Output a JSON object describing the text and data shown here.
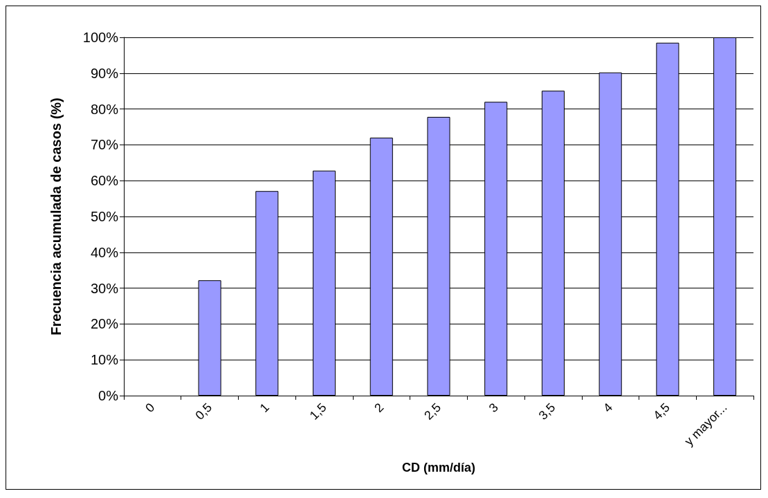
{
  "chart_data": {
    "type": "bar",
    "xlabel": "CD (mm/día)",
    "ylabel": "Frecuencia acumulada de casos (%)",
    "categories": [
      "0",
      "0,5",
      "1",
      "1,5",
      "2",
      "2,5",
      "3",
      "3,5",
      "4",
      "4,5",
      "y mayor..."
    ],
    "values": [
      0,
      32.2,
      57.1,
      62.8,
      72.0,
      77.8,
      82.0,
      85.1,
      90.2,
      98.5,
      100
    ],
    "color": "#9999ff",
    "ylim": [
      0,
      100
    ],
    "yticks": [
      {
        "value": 0,
        "label": "0%"
      },
      {
        "value": 10,
        "label": "10%"
      },
      {
        "value": 20,
        "label": "20%"
      },
      {
        "value": 30,
        "label": "30%"
      },
      {
        "value": 40,
        "label": "40%"
      },
      {
        "value": 50,
        "label": "50%"
      },
      {
        "value": 60,
        "label": "60%"
      },
      {
        "value": 70,
        "label": "70%"
      },
      {
        "value": 80,
        "label": "80%"
      },
      {
        "value": 90,
        "label": "90%"
      },
      {
        "value": 100,
        "label": "100%"
      }
    ],
    "grid": "y"
  }
}
